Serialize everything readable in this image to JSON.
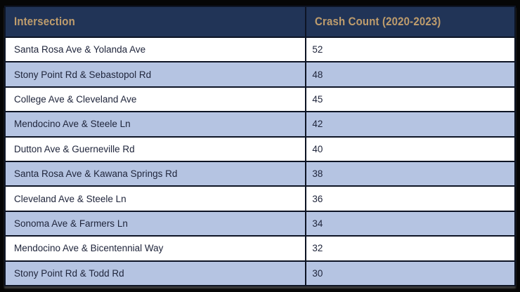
{
  "colors": {
    "page_background": "#060606",
    "header_background": "#213457",
    "header_text": "#bf9d6d",
    "row_white": "#ffffff",
    "row_blue": "#b5c4e2",
    "body_text": "#20263c",
    "border": "#0d1424"
  },
  "chart_data": {
    "type": "table",
    "title": "",
    "columns": [
      "Intersection",
      "Crash Count (2020-2023)"
    ],
    "rows": [
      [
        "Santa Rosa Ave & Yolanda Ave",
        52
      ],
      [
        "Stony Point Rd & Sebastopol Rd",
        48
      ],
      [
        "College Ave & Cleveland Ave",
        45
      ],
      [
        "Mendocino Ave & Steele Ln",
        42
      ],
      [
        "Dutton Ave & Guerneville Rd",
        40
      ],
      [
        "Santa Rosa Ave & Kawana Springs Rd",
        38
      ],
      [
        "Cleveland Ave & Steele Ln",
        36
      ],
      [
        "Sonoma Ave & Farmers Ln",
        34
      ],
      [
        "Mendocino Ave & Bicentennial Way",
        32
      ],
      [
        "Stony Point Rd & Todd Rd",
        30
      ]
    ],
    "layout": {
      "row_striping": "alternating white / light blue starting with white",
      "header_style": "dark navy background, tan condensed bold text",
      "grid": "dark 2px borders around all cells"
    }
  }
}
